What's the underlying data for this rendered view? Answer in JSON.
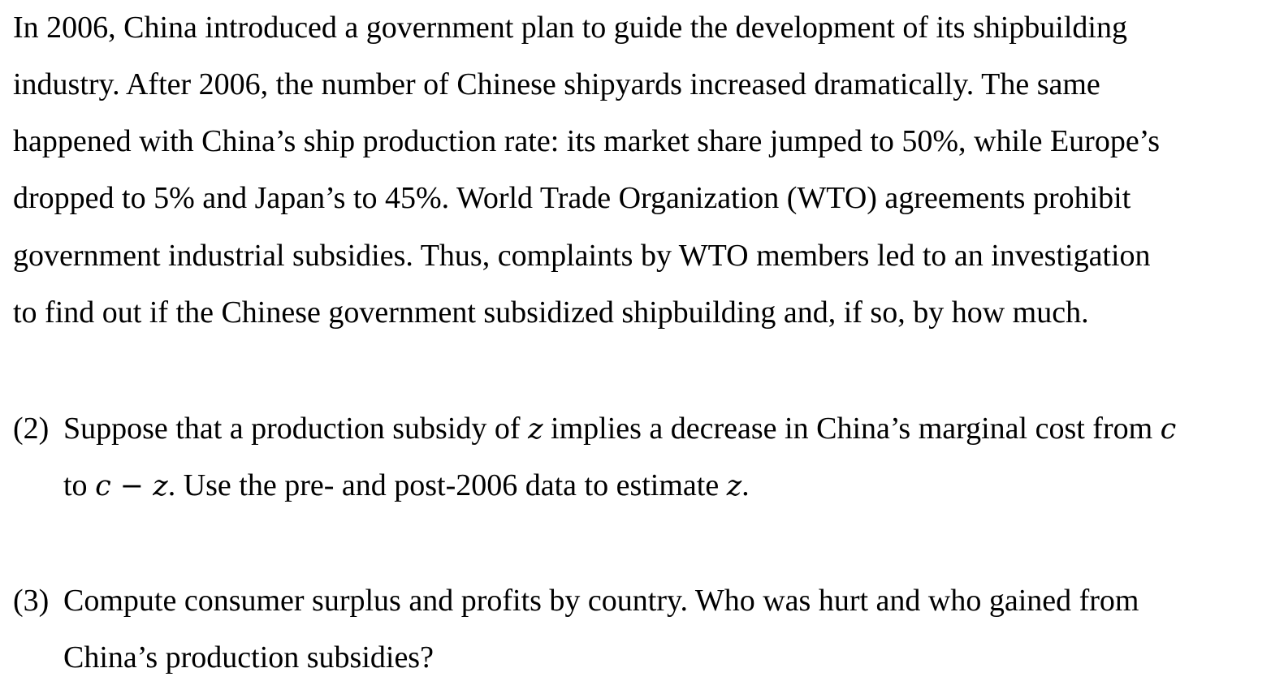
{
  "intro": {
    "lines": [
      "In 2006, China introduced a government plan to guide the development of its shipbuilding",
      "industry. After 2006, the number of Chinese shipyards increased dramatically. The same",
      "happened with China’s ship production rate: its market share jumped to 50%, while Europe’s",
      "dropped to 5% and Japan’s to 45%. World Trade Organization (WTO) agreements prohibit",
      "government industrial subsidies. Thus, complaints by WTO members led to an investigation",
      "to find out if the Chinese government subsidized shipbuilding and, if so, by how much."
    ]
  },
  "q2": {
    "label": "(2)",
    "line1_a": "Suppose that a production subsidy of ",
    "var_z": "z",
    "line1_b": " implies a decrease in China’s marginal cost from ",
    "var_c": "c",
    "line2_a": "to ",
    "expr": "c − z",
    "line2_b": ". Use the pre- and post-2006 data to estimate ",
    "var_z2": "z",
    "line2_c": "."
  },
  "q3": {
    "label": "(3)",
    "line1": "Compute consumer surplus and profits by country. Who was hurt and who gained from",
    "line2": "China’s production subsidies?"
  }
}
